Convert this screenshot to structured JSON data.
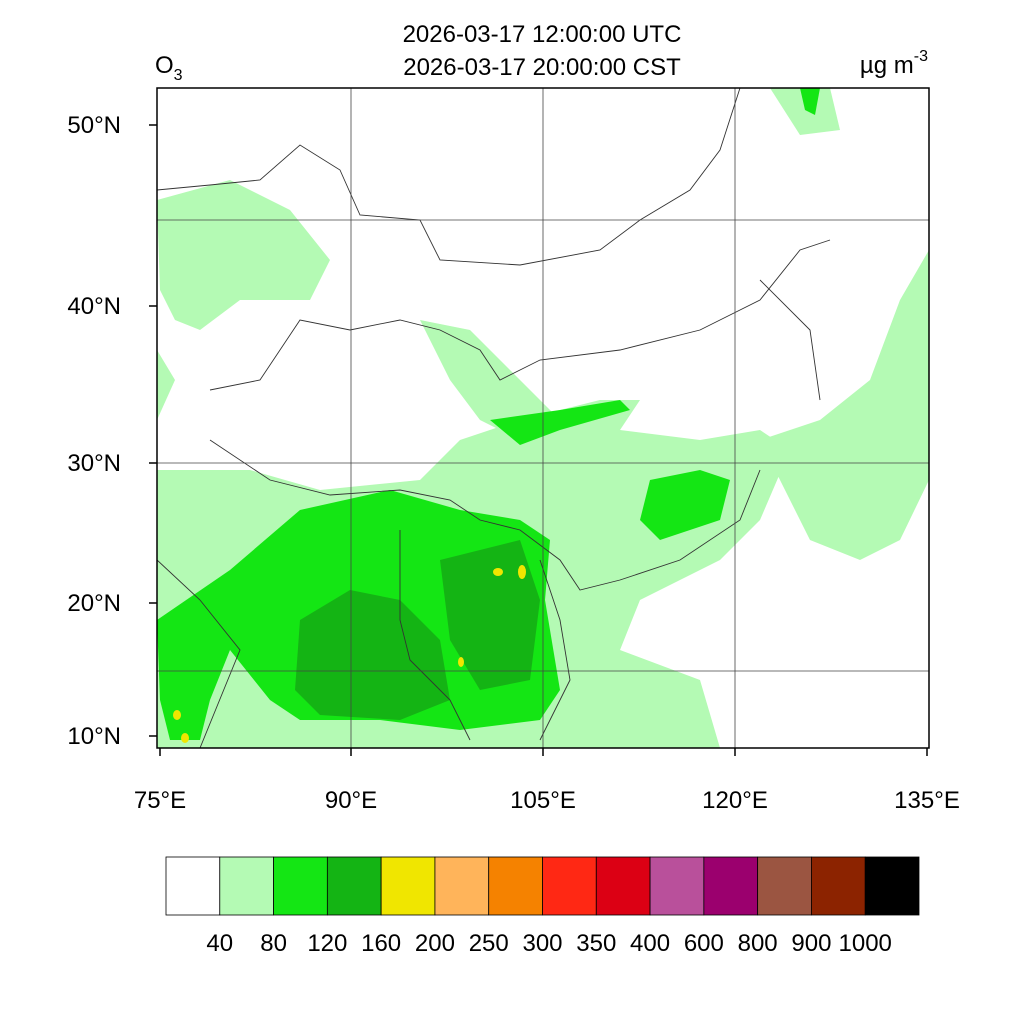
{
  "title_lines": [
    "2026-03-17 12:00:00 UTC",
    "2026-03-17 20:00:00 CST"
  ],
  "variable": {
    "name": "O",
    "subscript": "3"
  },
  "units": {
    "base": "µg m",
    "superscript": "-3"
  },
  "lat_labels": [
    "50°N",
    "40°N",
    "30°N",
    "20°N",
    "10°N"
  ],
  "lon_labels": [
    "75°E",
    "90°E",
    "105°E",
    "120°E",
    "135°E"
  ],
  "colorbar": {
    "colors": [
      "#ffffff",
      "#b4fab4",
      "#14e614",
      "#14b414",
      "#f0e600",
      "#ffb45a",
      "#f58200",
      "#ff2814",
      "#dc0014",
      "#b9509b",
      "#9b006e",
      "#9b5541",
      "#8c2300",
      "#000000"
    ],
    "labels": [
      "40",
      "80",
      "120",
      "160",
      "200",
      "250",
      "300",
      "350",
      "400",
      "600",
      "800",
      "900",
      "1000"
    ]
  }
}
